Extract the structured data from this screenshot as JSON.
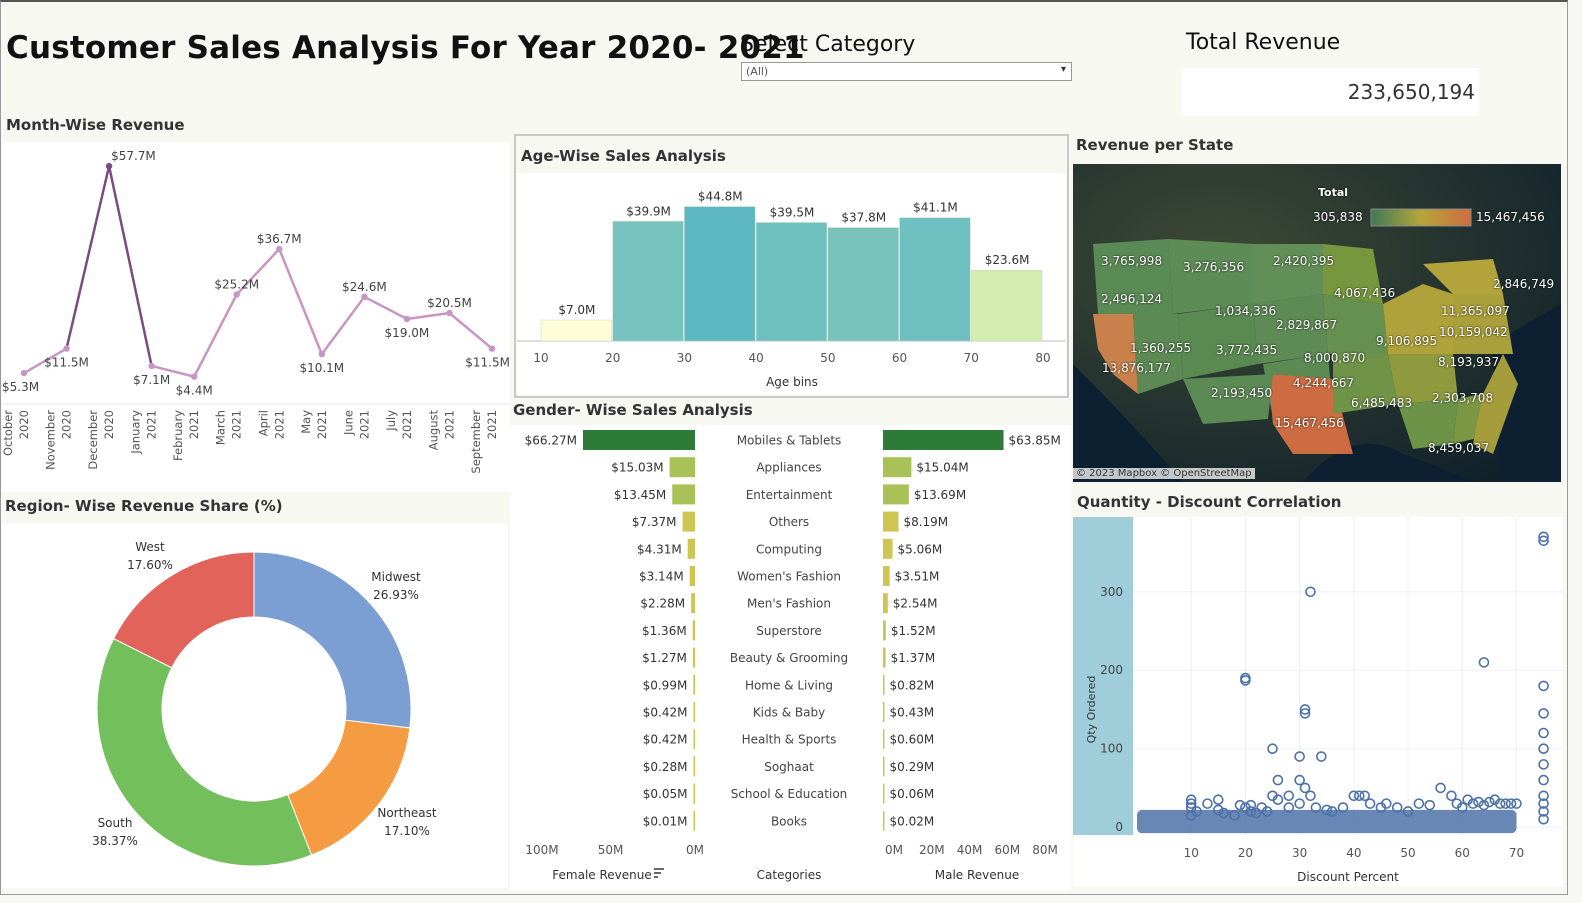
{
  "header": {
    "title": "Customer Sales Analysis For Year 2020- 2021",
    "select_category_label": "Select Category",
    "select_category_value": "(All)",
    "total_revenue_label": "Total Revenue",
    "total_revenue_value": "233,650,194"
  },
  "sections": {
    "month_title": "Month-Wise Revenue",
    "age_title": "Age-Wise Sales Analysis",
    "state_title": "Revenue per State",
    "gender_title": "Gender- Wise Sales Analysis",
    "region_title": "Region- Wise Revenue Share (%)",
    "scatter_title": "Quantity - Discount Correlation"
  },
  "colors": {
    "line": "#c796c4",
    "line_dark": "#7c4c80",
    "age_bins": [
      "#fdfdd8",
      "#76c3bf",
      "#5cb7c3",
      "#6fc1c0",
      "#78c4bd",
      "#6ec1c0",
      "#d3eeae"
    ],
    "region": {
      "Midwest": "#7b9fd3",
      "Northeast": "#f59c42",
      "South": "#72bf5b",
      "West": "#e2635a"
    },
    "scatter_point": "#4e72a8",
    "scatter_band": "#9fcdda"
  },
  "chart_data": [
    {
      "id": "month",
      "type": "line",
      "x": [
        "October 2020",
        "November 2020",
        "December 2020",
        "January 2021",
        "February 2021",
        "March 2021",
        "April 2021",
        "May 2021",
        "June 2021",
        "July 2021",
        "August 2021",
        "September 2021"
      ],
      "values": [
        5.3,
        11.5,
        57.7,
        7.1,
        4.4,
        25.2,
        36.7,
        10.1,
        24.6,
        19.0,
        20.5,
        11.5
      ],
      "labels": [
        "$5.3M",
        "$11.5M",
        "$57.7M",
        "$7.1M",
        "$4.4M",
        "$25.2M",
        "$36.7M",
        "$10.1M",
        "$24.6M",
        "$19.0M",
        "$20.5M",
        "$11.5M"
      ],
      "ylim": [
        0,
        60
      ]
    },
    {
      "id": "age",
      "type": "bar",
      "bins": [
        10,
        20,
        30,
        40,
        50,
        60,
        70,
        80
      ],
      "values": [
        7.0,
        39.9,
        44.8,
        39.5,
        37.8,
        41.1,
        23.6
      ],
      "labels": [
        "$7.0M",
        "$39.9M",
        "$44.8M",
        "$39.5M",
        "$37.8M",
        "$41.1M",
        "$23.6M"
      ],
      "xlabel": "Age bins",
      "ylim": [
        0,
        50
      ]
    },
    {
      "id": "gender",
      "type": "bar",
      "categories": [
        "Mobiles & Tablets",
        "Appliances",
        "Entertainment",
        "Others",
        "Computing",
        "Women's Fashion",
        "Men's Fashion",
        "Superstore",
        "Beauty & Grooming",
        "Home & Living",
        "Kids & Baby",
        "Health & Sports",
        "Soghaat",
        "School & Education",
        "Books"
      ],
      "female": [
        66.27,
        15.03,
        13.45,
        7.37,
        4.31,
        3.14,
        2.28,
        1.36,
        1.27,
        0.99,
        0.42,
        0.42,
        0.28,
        0.05,
        0.01
      ],
      "male": [
        63.85,
        15.04,
        13.69,
        8.19,
        5.06,
        3.51,
        2.54,
        1.52,
        1.37,
        0.82,
        0.43,
        0.6,
        0.29,
        0.06,
        0.02
      ],
      "female_labels": [
        "$66.27M",
        "$15.03M",
        "$13.45M",
        "$7.37M",
        "$4.31M",
        "$3.14M",
        "$2.28M",
        "$1.36M",
        "$1.27M",
        "$0.99M",
        "$0.42M",
        "$0.42M",
        "$0.28M",
        "$0.05M",
        "$0.01M"
      ],
      "male_labels": [
        "$63.85M",
        "$15.04M",
        "$13.69M",
        "$8.19M",
        "$5.06M",
        "$3.51M",
        "$2.54M",
        "$1.52M",
        "$1.37M",
        "$0.82M",
        "$0.43M",
        "$0.60M",
        "$0.29M",
        "$0.06M",
        "$0.02M"
      ],
      "female_axis_ticks": [
        "100M",
        "50M",
        "0M"
      ],
      "male_axis_ticks": [
        "0M",
        "20M",
        "40M",
        "60M",
        "80M"
      ],
      "female_label": "Female Revenue",
      "categories_label": "Categories",
      "male_label": "Male Revenue"
    },
    {
      "id": "region",
      "type": "pie",
      "slices": [
        {
          "name": "Midwest",
          "value": 26.93,
          "label": "26.93%"
        },
        {
          "name": "Northeast",
          "value": 17.1,
          "label": "17.10%"
        },
        {
          "name": "South",
          "value": 38.37,
          "label": "38.37%"
        },
        {
          "name": "West",
          "value": 17.6,
          "label": "17.60%"
        }
      ]
    },
    {
      "id": "scatter",
      "type": "scatter",
      "xlabel": "Discount Percent",
      "ylabel": "Qty Ordered",
      "xticks": [
        10,
        20,
        30,
        40,
        50,
        60,
        70
      ],
      "yticks": [
        0,
        100,
        200,
        300
      ],
      "xlim": [
        0,
        76
      ],
      "ylim": [
        -10,
        380
      ],
      "points": [
        [
          10,
          35
        ],
        [
          10,
          30
        ],
        [
          10,
          25
        ],
        [
          10,
          15
        ],
        [
          11,
          20
        ],
        [
          13,
          30
        ],
        [
          15,
          35
        ],
        [
          15,
          22
        ],
        [
          16,
          18
        ],
        [
          18,
          15
        ],
        [
          19,
          28
        ],
        [
          20,
          25
        ],
        [
          20,
          187
        ],
        [
          20,
          190
        ],
        [
          21,
          20
        ],
        [
          21,
          28
        ],
        [
          22,
          18
        ],
        [
          23,
          25
        ],
        [
          24,
          20
        ],
        [
          25,
          100
        ],
        [
          25,
          40
        ],
        [
          26,
          35
        ],
        [
          26,
          60
        ],
        [
          28,
          40
        ],
        [
          28,
          25
        ],
        [
          30,
          30
        ],
        [
          30,
          90
        ],
        [
          30,
          60
        ],
        [
          31,
          145
        ],
        [
          31,
          150
        ],
        [
          31,
          50
        ],
        [
          32,
          300
        ],
        [
          32,
          40
        ],
        [
          33,
          25
        ],
        [
          34,
          90
        ],
        [
          35,
          22
        ],
        [
          36,
          20
        ],
        [
          38,
          25
        ],
        [
          40,
          40
        ],
        [
          41,
          40
        ],
        [
          42,
          40
        ],
        [
          43,
          30
        ],
        [
          45,
          25
        ],
        [
          46,
          30
        ],
        [
          48,
          25
        ],
        [
          50,
          20
        ],
        [
          52,
          30
        ],
        [
          54,
          28
        ],
        [
          56,
          50
        ],
        [
          58,
          40
        ],
        [
          59,
          30
        ],
        [
          60,
          25
        ],
        [
          61,
          35
        ],
        [
          62,
          30
        ],
        [
          63,
          32
        ],
        [
          64,
          210
        ],
        [
          64,
          28
        ],
        [
          65,
          32
        ],
        [
          66,
          35
        ],
        [
          67,
          30
        ],
        [
          68,
          30
        ],
        [
          69,
          30
        ],
        [
          70,
          30
        ],
        [
          75,
          365
        ],
        [
          75,
          370
        ],
        [
          75,
          180
        ],
        [
          75,
          145
        ],
        [
          75,
          120
        ],
        [
          75,
          100
        ],
        [
          75,
          80
        ],
        [
          75,
          60
        ],
        [
          75,
          40
        ],
        [
          75,
          30
        ],
        [
          75,
          20
        ],
        [
          75,
          10
        ]
      ],
      "dense_band": {
        "x_from": 0,
        "x_to": 70,
        "y_from": 0,
        "y_to": 22
      }
    }
  ],
  "map": {
    "legend_title": "Total",
    "legend_min": "305,838",
    "legend_max": "15,467,456",
    "attribution": "© 2023 Mapbox  © OpenStreetMap",
    "state_labels": [
      "3,765,998",
      "3,276,356",
      "2,420,395",
      "2,496,124",
      "1,034,336",
      "4,067,436",
      "2,846,749",
      "2,829,867",
      "11,365,097",
      "10,159,042",
      "1,360,255",
      "3,772,435",
      "9,106,895",
      "13,876,177",
      "8,000,870",
      "8,193,937",
      "4,244,667",
      "2,193,450",
      "6,485,483",
      "2,303,708",
      "15,467,456",
      "8,459,037"
    ]
  }
}
